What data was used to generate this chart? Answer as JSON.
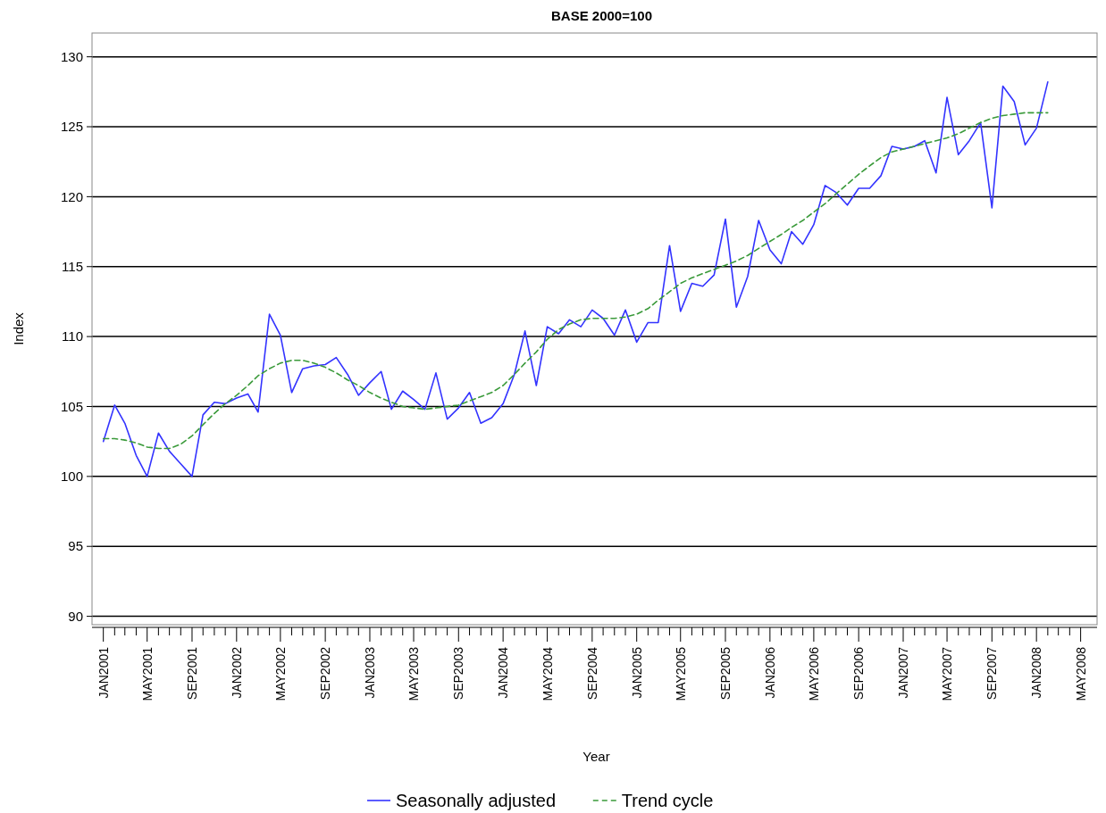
{
  "chart_data": {
    "type": "line",
    "title": "BASE 2000=100",
    "xlabel": "Year",
    "ylabel": "Index",
    "x": [
      "2001-01",
      "2001-02",
      "2001-03",
      "2001-04",
      "2001-05",
      "2001-06",
      "2001-07",
      "2001-08",
      "2001-09",
      "2001-10",
      "2001-11",
      "2001-12",
      "2002-01",
      "2002-02",
      "2002-03",
      "2002-04",
      "2002-05",
      "2002-06",
      "2002-07",
      "2002-08",
      "2002-09",
      "2002-10",
      "2002-11",
      "2002-12",
      "2003-01",
      "2003-02",
      "2003-03",
      "2003-04",
      "2003-05",
      "2003-06",
      "2003-07",
      "2003-08",
      "2003-09",
      "2003-10",
      "2003-11",
      "2003-12",
      "2004-01",
      "2004-02",
      "2004-03",
      "2004-04",
      "2004-05",
      "2004-06",
      "2004-07",
      "2004-08",
      "2004-09",
      "2004-10",
      "2004-11",
      "2004-12",
      "2005-01",
      "2005-02",
      "2005-03",
      "2005-04",
      "2005-05",
      "2005-06",
      "2005-07",
      "2005-08",
      "2005-09",
      "2005-10",
      "2005-11",
      "2005-12",
      "2006-01",
      "2006-02",
      "2006-03",
      "2006-04",
      "2006-05",
      "2006-06",
      "2006-07",
      "2006-08",
      "2006-09",
      "2006-10",
      "2006-11",
      "2006-12",
      "2007-01",
      "2007-02",
      "2007-03",
      "2007-04",
      "2007-05",
      "2007-06",
      "2007-07",
      "2007-08",
      "2007-09",
      "2007-10",
      "2007-11",
      "2007-12",
      "2008-01",
      "2008-02"
    ],
    "series": [
      {
        "name": "Seasonally adjusted",
        "color": "#3333ff",
        "line_style": "solid",
        "values": [
          102.5,
          105.1,
          103.8,
          101.5,
          100.0,
          103.1,
          101.8,
          100.9,
          100.0,
          104.4,
          105.3,
          105.2,
          105.6,
          105.9,
          104.6,
          111.6,
          110.1,
          106.0,
          107.7,
          107.9,
          108.0,
          108.5,
          107.3,
          105.8,
          106.7,
          107.5,
          104.8,
          106.1,
          105.5,
          104.8,
          107.4,
          104.1,
          104.9,
          106.0,
          103.8,
          104.2,
          105.2,
          107.3,
          110.4,
          106.5,
          110.7,
          110.2,
          111.2,
          110.7,
          111.9,
          111.3,
          110.1,
          111.9,
          109.6,
          111.0,
          111.0,
          116.5,
          111.8,
          113.8,
          113.6,
          114.4,
          118.4,
          112.1,
          114.3,
          118.3,
          116.2,
          115.2,
          117.5,
          116.6,
          118.0,
          120.8,
          120.3,
          119.4,
          120.6,
          120.6,
          121.5,
          123.6,
          123.4,
          123.6,
          124.0,
          121.7,
          127.1,
          123.0,
          124.0,
          125.3,
          119.2,
          127.9,
          126.8,
          123.7,
          124.9,
          128.2
        ]
      },
      {
        "name": "Trend cycle",
        "color": "#3a9a3a",
        "line_style": "dashed",
        "values": [
          102.7,
          102.7,
          102.6,
          102.4,
          102.1,
          102.0,
          102.0,
          102.3,
          102.9,
          103.7,
          104.5,
          105.2,
          105.8,
          106.5,
          107.2,
          107.7,
          108.1,
          108.3,
          108.3,
          108.1,
          107.8,
          107.4,
          106.9,
          106.5,
          106.0,
          105.6,
          105.3,
          105.0,
          104.9,
          104.8,
          104.9,
          105.0,
          105.1,
          105.4,
          105.7,
          106.0,
          106.5,
          107.3,
          108.1,
          108.9,
          109.8,
          110.5,
          110.9,
          111.2,
          111.3,
          111.3,
          111.3,
          111.4,
          111.6,
          112.0,
          112.6,
          113.2,
          113.8,
          114.2,
          114.5,
          114.8,
          115.1,
          115.4,
          115.8,
          116.3,
          116.8,
          117.3,
          117.8,
          118.3,
          118.9,
          119.5,
          120.2,
          120.9,
          121.6,
          122.2,
          122.8,
          123.2,
          123.4,
          123.6,
          123.8,
          124.0,
          124.2,
          124.5,
          124.9,
          125.3,
          125.6,
          125.8,
          125.9,
          126.0,
          126.0,
          126.0
        ]
      }
    ],
    "xlim": [
      "2000-12-01",
      "2008-06-15"
    ],
    "xticks": [
      {
        "value": "2001-01",
        "label": "JAN2001"
      },
      {
        "value": "2001-02",
        "label": null
      },
      {
        "value": "2001-03",
        "label": null
      },
      {
        "value": "2001-04",
        "label": null
      },
      {
        "value": "2001-05",
        "label": "MAY2001"
      },
      {
        "value": "2001-06",
        "label": null
      },
      {
        "value": "2001-07",
        "label": null
      },
      {
        "value": "2001-08",
        "label": null
      },
      {
        "value": "2001-09",
        "label": "SEP2001"
      },
      {
        "value": "2001-10",
        "label": null
      },
      {
        "value": "2001-11",
        "label": null
      },
      {
        "value": "2001-12",
        "label": null
      },
      {
        "value": "2002-01",
        "label": "JAN2002"
      },
      {
        "value": "2002-02",
        "label": null
      },
      {
        "value": "2002-03",
        "label": null
      },
      {
        "value": "2002-04",
        "label": null
      },
      {
        "value": "2002-05",
        "label": "MAY2002"
      },
      {
        "value": "2002-06",
        "label": null
      },
      {
        "value": "2002-07",
        "label": null
      },
      {
        "value": "2002-08",
        "label": null
      },
      {
        "value": "2002-09",
        "label": "SEP2002"
      },
      {
        "value": "2002-10",
        "label": null
      },
      {
        "value": "2002-11",
        "label": null
      },
      {
        "value": "2002-12",
        "label": null
      },
      {
        "value": "2003-01",
        "label": "JAN2003"
      },
      {
        "value": "2003-02",
        "label": null
      },
      {
        "value": "2003-03",
        "label": null
      },
      {
        "value": "2003-04",
        "label": null
      },
      {
        "value": "2003-05",
        "label": "MAY2003"
      },
      {
        "value": "2003-06",
        "label": null
      },
      {
        "value": "2003-07",
        "label": null
      },
      {
        "value": "2003-08",
        "label": null
      },
      {
        "value": "2003-09",
        "label": "SEP2003"
      },
      {
        "value": "2003-10",
        "label": null
      },
      {
        "value": "2003-11",
        "label": null
      },
      {
        "value": "2003-12",
        "label": null
      },
      {
        "value": "2004-01",
        "label": "JAN2004"
      },
      {
        "value": "2004-02",
        "label": null
      },
      {
        "value": "2004-03",
        "label": null
      },
      {
        "value": "2004-04",
        "label": null
      },
      {
        "value": "2004-05",
        "label": "MAY2004"
      },
      {
        "value": "2004-06",
        "label": null
      },
      {
        "value": "2004-07",
        "label": null
      },
      {
        "value": "2004-08",
        "label": null
      },
      {
        "value": "2004-09",
        "label": "SEP2004"
      },
      {
        "value": "2004-10",
        "label": null
      },
      {
        "value": "2004-11",
        "label": null
      },
      {
        "value": "2004-12",
        "label": null
      },
      {
        "value": "2005-01",
        "label": "JAN2005"
      },
      {
        "value": "2005-02",
        "label": null
      },
      {
        "value": "2005-03",
        "label": null
      },
      {
        "value": "2005-04",
        "label": null
      },
      {
        "value": "2005-05",
        "label": "MAY2005"
      },
      {
        "value": "2005-06",
        "label": null
      },
      {
        "value": "2005-07",
        "label": null
      },
      {
        "value": "2005-08",
        "label": null
      },
      {
        "value": "2005-09",
        "label": "SEP2005"
      },
      {
        "value": "2005-10",
        "label": null
      },
      {
        "value": "2005-11",
        "label": null
      },
      {
        "value": "2005-12",
        "label": null
      },
      {
        "value": "2006-01",
        "label": "JAN2006"
      },
      {
        "value": "2006-02",
        "label": null
      },
      {
        "value": "2006-03",
        "label": null
      },
      {
        "value": "2006-04",
        "label": null
      },
      {
        "value": "2006-05",
        "label": "MAY2006"
      },
      {
        "value": "2006-06",
        "label": null
      },
      {
        "value": "2006-07",
        "label": null
      },
      {
        "value": "2006-08",
        "label": null
      },
      {
        "value": "2006-09",
        "label": "SEP2006"
      },
      {
        "value": "2006-10",
        "label": null
      },
      {
        "value": "2006-11",
        "label": null
      },
      {
        "value": "2006-12",
        "label": null
      },
      {
        "value": "2007-01",
        "label": "JAN2007"
      },
      {
        "value": "2007-02",
        "label": null
      },
      {
        "value": "2007-03",
        "label": null
      },
      {
        "value": "2007-04",
        "label": null
      },
      {
        "value": "2007-05",
        "label": "MAY2007"
      },
      {
        "value": "2007-06",
        "label": null
      },
      {
        "value": "2007-07",
        "label": null
      },
      {
        "value": "2007-08",
        "label": null
      },
      {
        "value": "2007-09",
        "label": "SEP2007"
      },
      {
        "value": "2007-10",
        "label": null
      },
      {
        "value": "2007-11",
        "label": null
      },
      {
        "value": "2007-12",
        "label": null
      },
      {
        "value": "2008-01",
        "label": "JAN2008"
      },
      {
        "value": "2008-02",
        "label": null
      },
      {
        "value": "2008-03",
        "label": null
      },
      {
        "value": "2008-04",
        "label": null
      },
      {
        "value": "2008-05",
        "label": "MAY2008"
      }
    ],
    "ylim": [
      89.4,
      131.7
    ],
    "yticks": [
      90,
      95,
      100,
      105,
      110,
      115,
      120,
      125,
      130
    ],
    "grid": "y",
    "legend": "bottom"
  }
}
